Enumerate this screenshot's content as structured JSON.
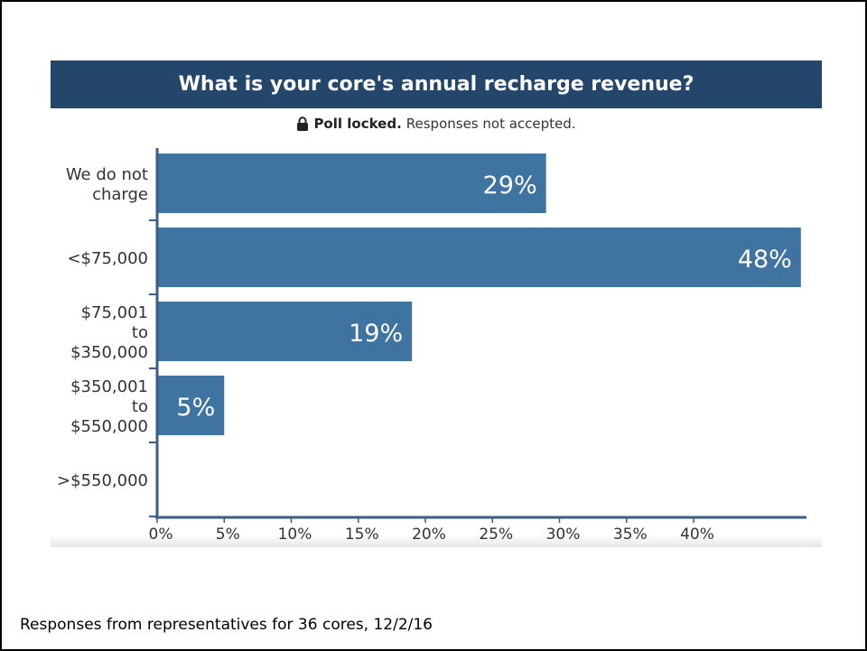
{
  "poll": {
    "title": "What is your core's annual recharge revenue?",
    "locked_bold": "Poll locked.",
    "locked_text": "Responses not accepted."
  },
  "footer": {
    "text": "Responses from representatives for 36 cores, 12/2/16"
  },
  "colors": {
    "header": "#24466b",
    "bar": "#3f73a0",
    "axis": "#3a5f86"
  },
  "chart_data": {
    "type": "bar",
    "orientation": "horizontal",
    "title": "What is your core's annual recharge revenue?",
    "categories": [
      [
        "We do not",
        "charge"
      ],
      [
        "<$75,000"
      ],
      [
        "$75,001",
        "to",
        "$350,000"
      ],
      [
        "$350,001",
        "to",
        "$550,000"
      ],
      [
        ">$550,000"
      ]
    ],
    "values": [
      29,
      48,
      19,
      5,
      0
    ],
    "value_labels": [
      "29%",
      "48%",
      "19%",
      "5%",
      ""
    ],
    "x_ticks": [
      "0%",
      "5%",
      "10%",
      "15%",
      "20%",
      "25%",
      "30%",
      "35%",
      "40%"
    ],
    "x_tick_values": [
      0,
      5,
      10,
      15,
      20,
      25,
      30,
      35,
      40
    ],
    "xlim": [
      0,
      48
    ],
    "grid": false
  }
}
